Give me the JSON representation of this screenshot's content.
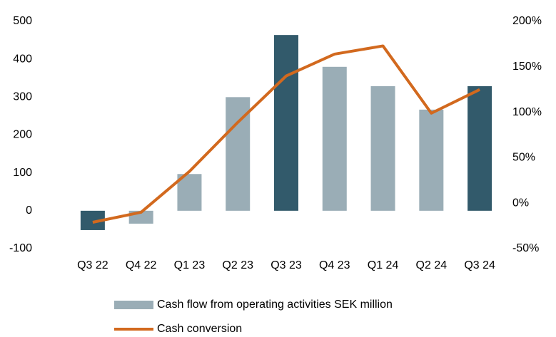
{
  "chart_data": {
    "type": "bar-line",
    "categories": [
      "Q3 22",
      "Q4 22",
      "Q1 23",
      "Q2 23",
      "Q3 23",
      "Q4 23",
      "Q1 24",
      "Q2 24",
      "Q3 24"
    ],
    "series": [
      {
        "name": "Cash flow from operating activities SEK million",
        "type": "bar",
        "color": "#9aadb6",
        "bar_colors": [
          "#325a6b",
          "#9aadb6",
          "#9aadb6",
          "#9aadb6",
          "#325a6b",
          "#9aadb6",
          "#9aadb6",
          "#9aadb6",
          "#325a6b"
        ],
        "values": [
          -51,
          -34,
          97,
          300,
          464,
          380,
          329,
          267,
          329
        ]
      },
      {
        "name": "Cash conversion",
        "type": "line",
        "axis": "y2",
        "color": "#d2691e",
        "values": [
          -21,
          -10,
          35,
          89,
          140,
          164,
          173,
          99,
          125
        ]
      }
    ],
    "ylim": [
      -100,
      500
    ],
    "yticks": [
      -100,
      0,
      100,
      200,
      300,
      400,
      500
    ],
    "y2lim": [
      -50,
      200
    ],
    "y2ticks": [
      {
        "value": -50,
        "label": "-50%"
      },
      {
        "value": 0,
        "label": "0%"
      },
      {
        "value": 50,
        "label": "50%"
      },
      {
        "value": 100,
        "label": "100%"
      },
      {
        "value": 150,
        "label": "150%"
      },
      {
        "value": 200,
        "label": "200%"
      }
    ],
    "grid": false
  }
}
